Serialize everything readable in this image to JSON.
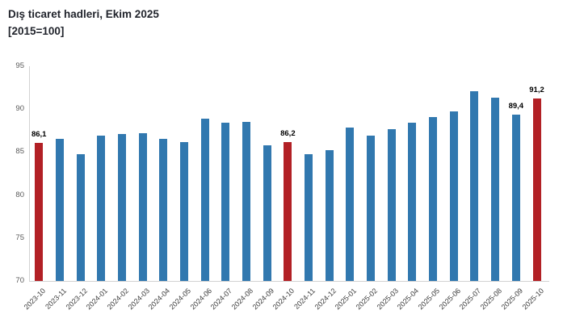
{
  "header": {
    "title": "Dış ticaret hadleri, Ekim 2025",
    "subtitle": "[2015=100]"
  },
  "chart_data": {
    "type": "bar",
    "title": "Dış ticaret hadleri, Ekim 2025",
    "subtitle": "[2015=100]",
    "xlabel": "",
    "ylabel": "",
    "ylim": [
      70,
      95
    ],
    "yticks": [
      70,
      75,
      80,
      85,
      90,
      95
    ],
    "grid": false,
    "legend": false,
    "bar_color": "#3178af",
    "highlight_color": "#b22025",
    "categories": [
      "2023-10",
      "2023-11",
      "2023-12",
      "2024-01",
      "2024-02",
      "2024-03",
      "2024-04",
      "2024-05",
      "2024-06",
      "2024-07",
      "2024-08",
      "2024-09",
      "2024-10",
      "2024-11",
      "2024-12",
      "2025-01",
      "2025-02",
      "2025-03",
      "2025-04",
      "2025-05",
      "2025-06",
      "2025-07",
      "2025-08",
      "2025-09",
      "2025-10"
    ],
    "values": [
      86.1,
      86.5,
      84.8,
      86.9,
      87.1,
      87.2,
      86.5,
      86.2,
      88.9,
      88.4,
      88.5,
      85.8,
      86.2,
      84.8,
      85.2,
      87.9,
      86.9,
      87.7,
      88.4,
      89.1,
      89.7,
      92.1,
      91.3,
      89.4,
      91.2
    ],
    "highlight_indices": [
      0,
      12,
      24
    ],
    "data_labels": [
      {
        "index": 0,
        "text": "86,1"
      },
      {
        "index": 12,
        "text": "86,2"
      },
      {
        "index": 23,
        "text": "89,4"
      },
      {
        "index": 24,
        "text": "91,2"
      }
    ]
  }
}
